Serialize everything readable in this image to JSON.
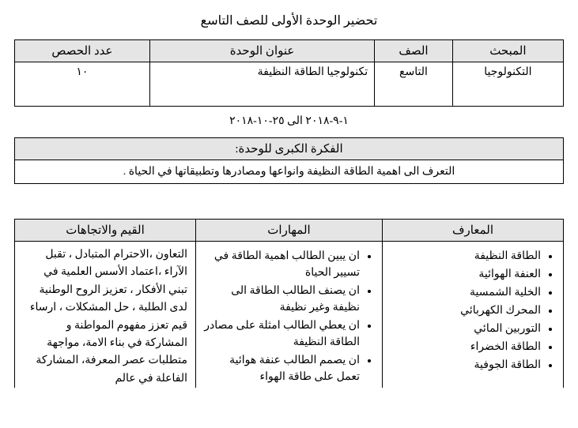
{
  "title": "تحضير الوحدة الأولى للصف التاسع",
  "header_table": {
    "columns": [
      "المبحث",
      "الصف",
      "عنوان الوحدة",
      "عدد الحصص"
    ],
    "row": {
      "subject": "التكنولوجيا",
      "grade": "التاسع",
      "unit_title": "تكنولوجيا الطاقة النظيفة",
      "lessons": "١٠"
    }
  },
  "date_range": "١-٩-٢٠١٨    الى  ٢٥-١٠-٢٠١٨",
  "big_idea": {
    "label": "الفكرة الكبرى للوحدة:",
    "text": "التعرف الى اهمية الطاقة النظيفة وانواعها ومصادرها وتطبيقاتها في الحياة ."
  },
  "matrix": {
    "columns": [
      "المعارف",
      "المهارات",
      "القيم والاتجاهات"
    ],
    "knowledge": [
      "الطاقة النظيفة",
      "العنفة الهوائية",
      "الخلية الشمسية",
      "المحرك الكهربائي",
      "التوربين المائي",
      "الطاقة الخضراء",
      "الطاقة الجوفية"
    ],
    "skills": [
      "ان يبين الطالب اهمية الطاقة في تسيير الحياة",
      "ان يصنف الطالب الطاقة الى نظيفة وغير نظيفة",
      "ان يعطي الطالب امثلة على مصادر الطاقة النظيفة",
      "ان يصمم الطالب عنفة هوائية تعمل على طاقة الهواء"
    ],
    "values": "التعاون ،الاحترام المتبادل ، تقبل الآراء ،اعتماد الأسس العلمية في تبني الأفكار ، تعزيز الروح الوطنية لدى الطلبة ، حل المشكلات ، ارساء قيم تعزز مفهوم المواطنة و المشاركة في بناء الامة، مواجهة متطلبات عصر المعرفة، المشاركة الفاعلة في عالم"
  }
}
